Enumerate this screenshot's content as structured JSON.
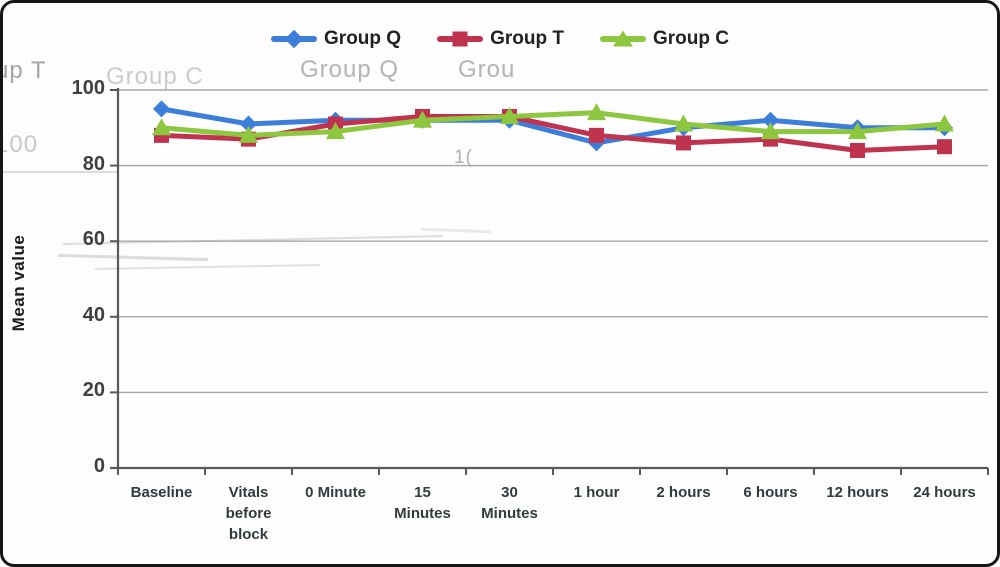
{
  "axes": {
    "y_title": "Mean value"
  },
  "chart_data": {
    "type": "line",
    "title": "",
    "xlabel": "",
    "ylabel": "Mean value",
    "ylim": [
      0,
      100
    ],
    "yticks": [
      0,
      20,
      40,
      60,
      80,
      100
    ],
    "grid": true,
    "legend_position": "top",
    "categories": [
      "Baseline",
      "Vitals before block",
      "0 Minute",
      "15 Minutes",
      "30 Minutes",
      "1 hour",
      "2 hours",
      "6 hours",
      "12 hours",
      "24 hours"
    ],
    "tick_label_lines": [
      "Baseline",
      "Vitals\nbefore\nblock",
      "0 Minute",
      "15\nMinutes",
      "30\nMinutes",
      "1 hour",
      "2 hours",
      "6 hours",
      "12 hours",
      "24 hours"
    ],
    "series": [
      {
        "name": "Group Q",
        "marker": "diamond",
        "color": "#3d7edb",
        "values": [
          95,
          91,
          92,
          92,
          92,
          86,
          90,
          92,
          90,
          90
        ]
      },
      {
        "name": "Group T",
        "marker": "square",
        "color": "#c0334e",
        "values": [
          88,
          87,
          91,
          93,
          93,
          88,
          86,
          87,
          84,
          85
        ]
      },
      {
        "name": "Group C",
        "marker": "triangle",
        "color": "#8dc63f",
        "values": [
          90,
          88,
          89,
          92,
          93,
          94,
          91,
          89,
          89,
          91
        ]
      }
    ],
    "axis_color": "#595959",
    "gridline_color": "#a6a6a6"
  },
  "artifacts": {
    "ghost_texts": [
      {
        "text": "up T"
      },
      {
        "text": "Group C"
      },
      {
        "text": "Group Q"
      },
      {
        "text": "Grou"
      },
      {
        "text": "100"
      },
      {
        "text": "1("
      }
    ]
  }
}
